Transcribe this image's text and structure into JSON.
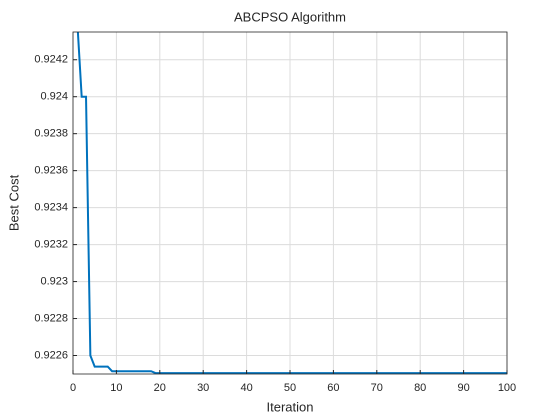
{
  "chart_data": {
    "type": "line",
    "title": "ABCPSO Algorithm",
    "x_label": "Iteration",
    "y_label": "Best Cost",
    "x": [
      1,
      2,
      3,
      4,
      5,
      6,
      7,
      8,
      9,
      10,
      11,
      12,
      13,
      14,
      15,
      16,
      17,
      18,
      19,
      20,
      21,
      22,
      23,
      24,
      25,
      26,
      27,
      28,
      29,
      30,
      31,
      32,
      33,
      34,
      35,
      36,
      37,
      38,
      39,
      40,
      41,
      42,
      43,
      44,
      45,
      46,
      47,
      48,
      49,
      50,
      51,
      52,
      53,
      54,
      55,
      56,
      57,
      58,
      59,
      60,
      61,
      62,
      63,
      64,
      65,
      66,
      67,
      68,
      69,
      70,
      71,
      72,
      73,
      74,
      75,
      76,
      77,
      78,
      79,
      80,
      81,
      82,
      83,
      84,
      85,
      86,
      87,
      88,
      89,
      90,
      91,
      92,
      93,
      94,
      95,
      96,
      97,
      98,
      99,
      100
    ],
    "series": [
      {
        "name": "Best Cost",
        "color": "#0072bd",
        "values": [
          0.9244,
          0.924,
          0.924,
          0.9226,
          0.92254,
          0.92254,
          0.92254,
          0.92254,
          0.922515,
          0.922515,
          0.922515,
          0.922515,
          0.922515,
          0.922515,
          0.922515,
          0.922515,
          0.922515,
          0.922515,
          0.922505,
          0.922505,
          0.922505,
          0.922505,
          0.922505,
          0.922505,
          0.922505,
          0.922505,
          0.922505,
          0.922505,
          0.922505,
          0.922505,
          0.922505,
          0.922505,
          0.922505,
          0.922505,
          0.922505,
          0.922505,
          0.922505,
          0.922505,
          0.922505,
          0.922505,
          0.922505,
          0.922505,
          0.922505,
          0.922505,
          0.922505,
          0.922505,
          0.922505,
          0.922505,
          0.922505,
          0.922505,
          0.922505,
          0.922505,
          0.922505,
          0.922505,
          0.922505,
          0.922505,
          0.922505,
          0.922505,
          0.922505,
          0.922505,
          0.922505,
          0.922505,
          0.922505,
          0.922505,
          0.922505,
          0.922505,
          0.922505,
          0.922505,
          0.922505,
          0.922505,
          0.922505,
          0.922505,
          0.922505,
          0.922505,
          0.922505,
          0.922505,
          0.922505,
          0.922505,
          0.922505,
          0.922505,
          0.922505,
          0.922505,
          0.922505,
          0.922505,
          0.922505,
          0.922505,
          0.922505,
          0.922505,
          0.922505,
          0.922505,
          0.922505,
          0.922505,
          0.922505,
          0.922505,
          0.922505,
          0.922505,
          0.922505,
          0.922505,
          0.922505,
          0.922505
        ]
      }
    ],
    "xlim": [
      0,
      100
    ],
    "xticks": [
      0,
      10,
      20,
      30,
      40,
      50,
      60,
      70,
      80,
      90,
      100
    ],
    "ylim": [
      0.9225,
      0.92435
    ],
    "yticks": [
      0.9226,
      0.9228,
      0.923,
      0.9232,
      0.9234,
      0.9236,
      0.9238,
      0.924,
      0.9242
    ],
    "grid": true
  }
}
